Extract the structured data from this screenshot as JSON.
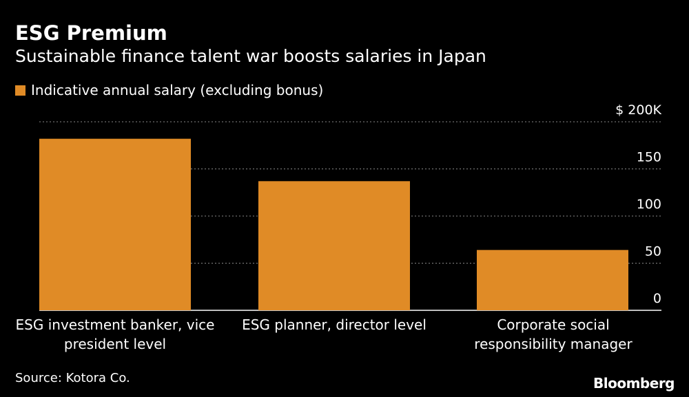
{
  "header": {
    "title": "ESG Premium",
    "subtitle": "Sustainable finance talent war boosts salaries in Japan"
  },
  "colors": {
    "bar": "#E08B26",
    "background": "#000000",
    "text": "#FFFFFF",
    "gridline": "#8A8A8A"
  },
  "chart_data": {
    "type": "bar",
    "title": "ESG Premium",
    "subtitle": "Sustainable finance talent war boosts salaries in Japan",
    "categories": [
      "ESG investment banker, vice president level",
      "ESG planner, director level",
      "Corporate social responsibility manager"
    ],
    "category_lines": [
      [
        "ESG investment banker, vice",
        "president level"
      ],
      [
        "ESG planner, director level"
      ],
      [
        "Corporate social",
        "responsibility manager"
      ]
    ],
    "series": [
      {
        "name": "Indicative annual salary (excluding bonus)",
        "values": [
          182,
          137,
          64
        ]
      }
    ],
    "ylim": [
      0,
      200
    ],
    "yticks": [
      0,
      50,
      100,
      150,
      200
    ],
    "ytick_labels": [
      "0",
      "50",
      "100",
      "150",
      "$ 200K"
    ],
    "xlabel": "",
    "ylabel": "",
    "axis_side": "right",
    "grid": true,
    "legend_position": "top-left"
  },
  "footer": {
    "source": "Source: Kotora Co.",
    "brand": "Bloomberg"
  }
}
